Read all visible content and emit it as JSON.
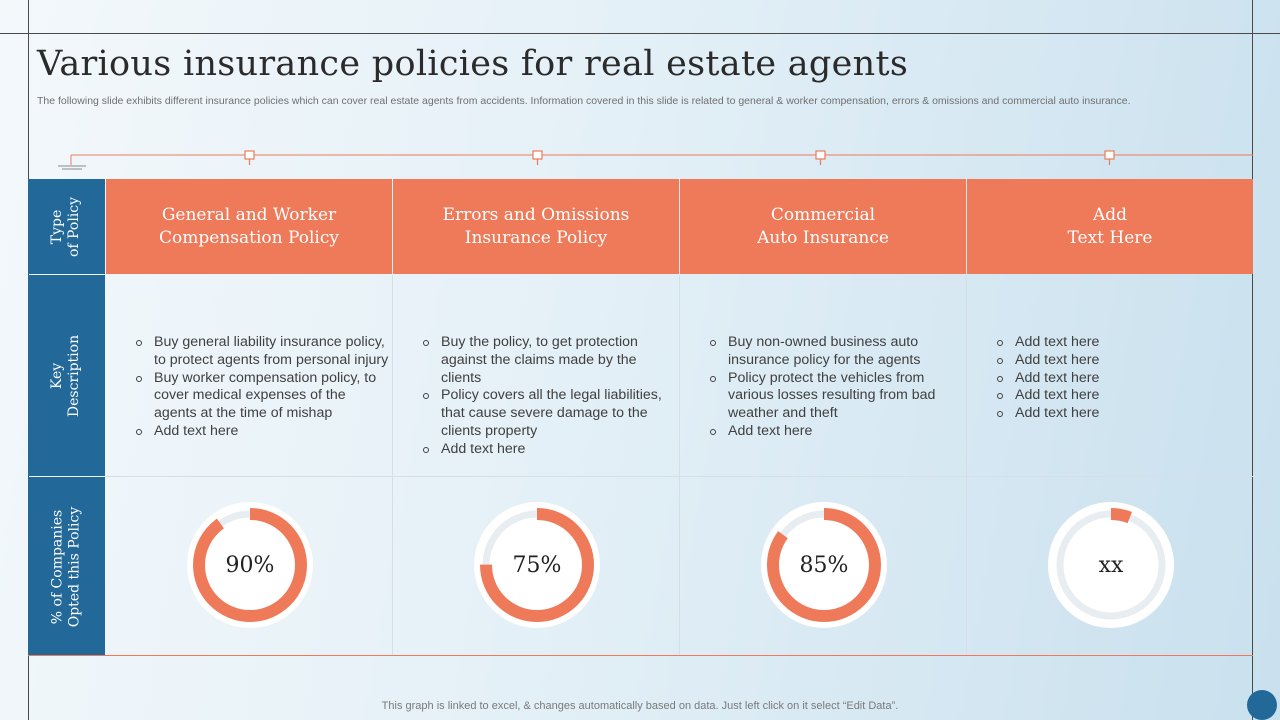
{
  "title": "Various insurance policies for real estate agents",
  "subtitle": "The following slide exhibits different insurance policies which can cover real estate agents from accidents. Information covered in this slide is related to general & worker compensation, errors & omissions and commercial auto insurance.",
  "row_headers": {
    "type": "Type\nof Policy",
    "description": "Key\nDescription",
    "companies": "% of Companies\nOpted this Policy"
  },
  "policies": [
    {
      "title": "General and Worker\nCompensation Policy",
      "bullets": [
        "Buy general liability  insurance policy, to protect agents from personal injury",
        "Buy worker compensation policy, to cover medical expenses of the agents at the time of mishap",
        "Add text here"
      ],
      "percent_label": "90%",
      "percent_value": 90
    },
    {
      "title": "Errors and Omissions\nInsurance Policy",
      "bullets": [
        "Buy the policy, to get protection against the claims made by the clients",
        "Policy covers all the legal liabilities, that cause severe damage to the clients property",
        "Add text here"
      ],
      "percent_label": "75%",
      "percent_value": 75
    },
    {
      "title": "Commercial\nAuto Insurance",
      "bullets": [
        "Buy non-owned business auto insurance policy for the agents",
        "Policy protect the vehicles from various losses resulting from bad weather and theft",
        "Add text here"
      ],
      "percent_label": "85%",
      "percent_value": 85
    },
    {
      "title": "Add\nText Here",
      "bullets": [
        "Add text here",
        "Add text here",
        "Add text here",
        "Add text here",
        "Add text here"
      ],
      "percent_label": "xx",
      "percent_value": 6
    }
  ],
  "footer": "This graph is linked to excel, & changes automatically based on data. Just left click on it select “Edit Data”.",
  "colors": {
    "accent": "#ee7a5a",
    "primary": "#22699a",
    "track": "#e8edf1"
  }
}
